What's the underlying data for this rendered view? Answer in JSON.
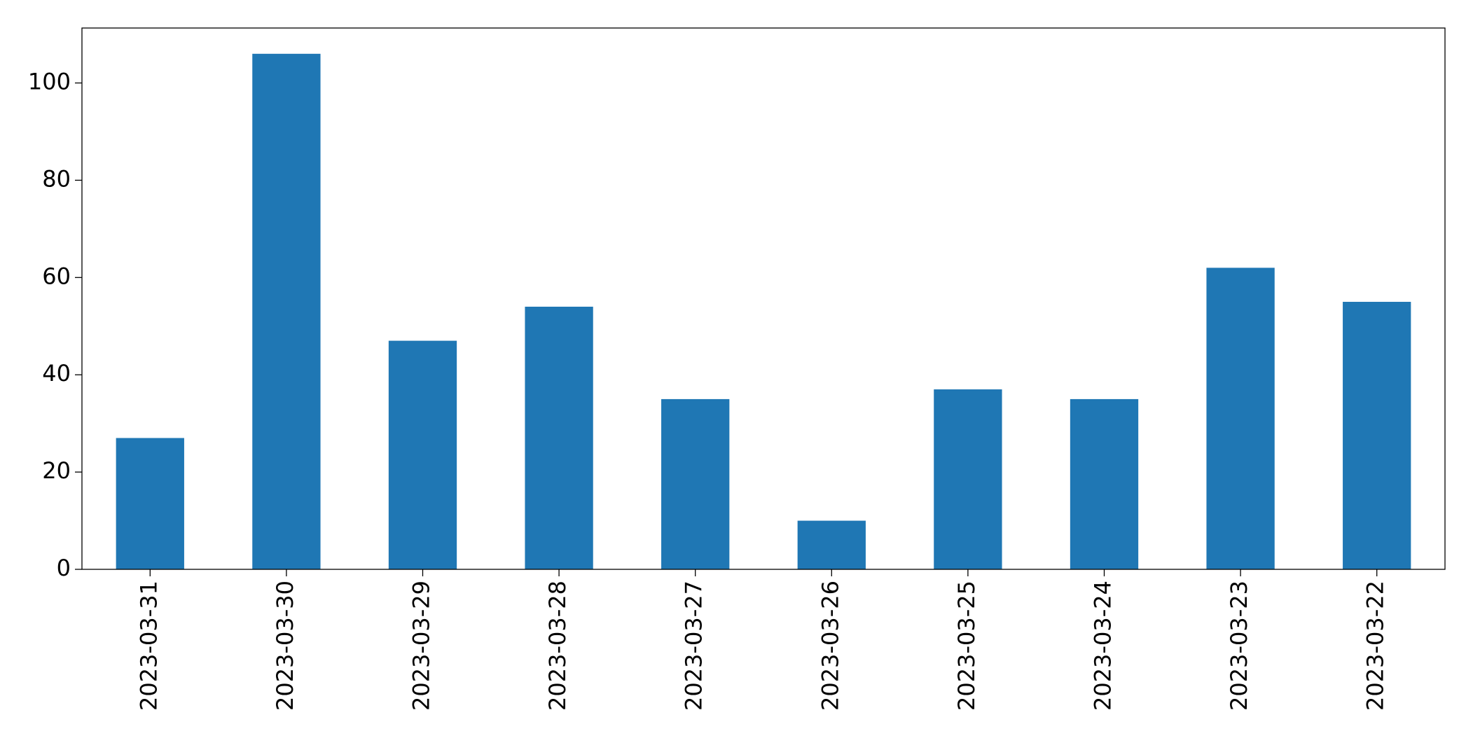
{
  "chart_data": {
    "type": "bar",
    "categories": [
      "2023-03-31",
      "2023-03-30",
      "2023-03-29",
      "2023-03-28",
      "2023-03-27",
      "2023-03-26",
      "2023-03-25",
      "2023-03-24",
      "2023-03-23",
      "2023-03-22"
    ],
    "values": [
      27,
      106,
      47,
      54,
      35,
      10,
      37,
      35,
      62,
      55
    ],
    "color": "#1f77b4",
    "ylim": [
      0,
      111.3
    ],
    "yticks": [
      0,
      20,
      40,
      60,
      80,
      100
    ],
    "grid": false
  }
}
